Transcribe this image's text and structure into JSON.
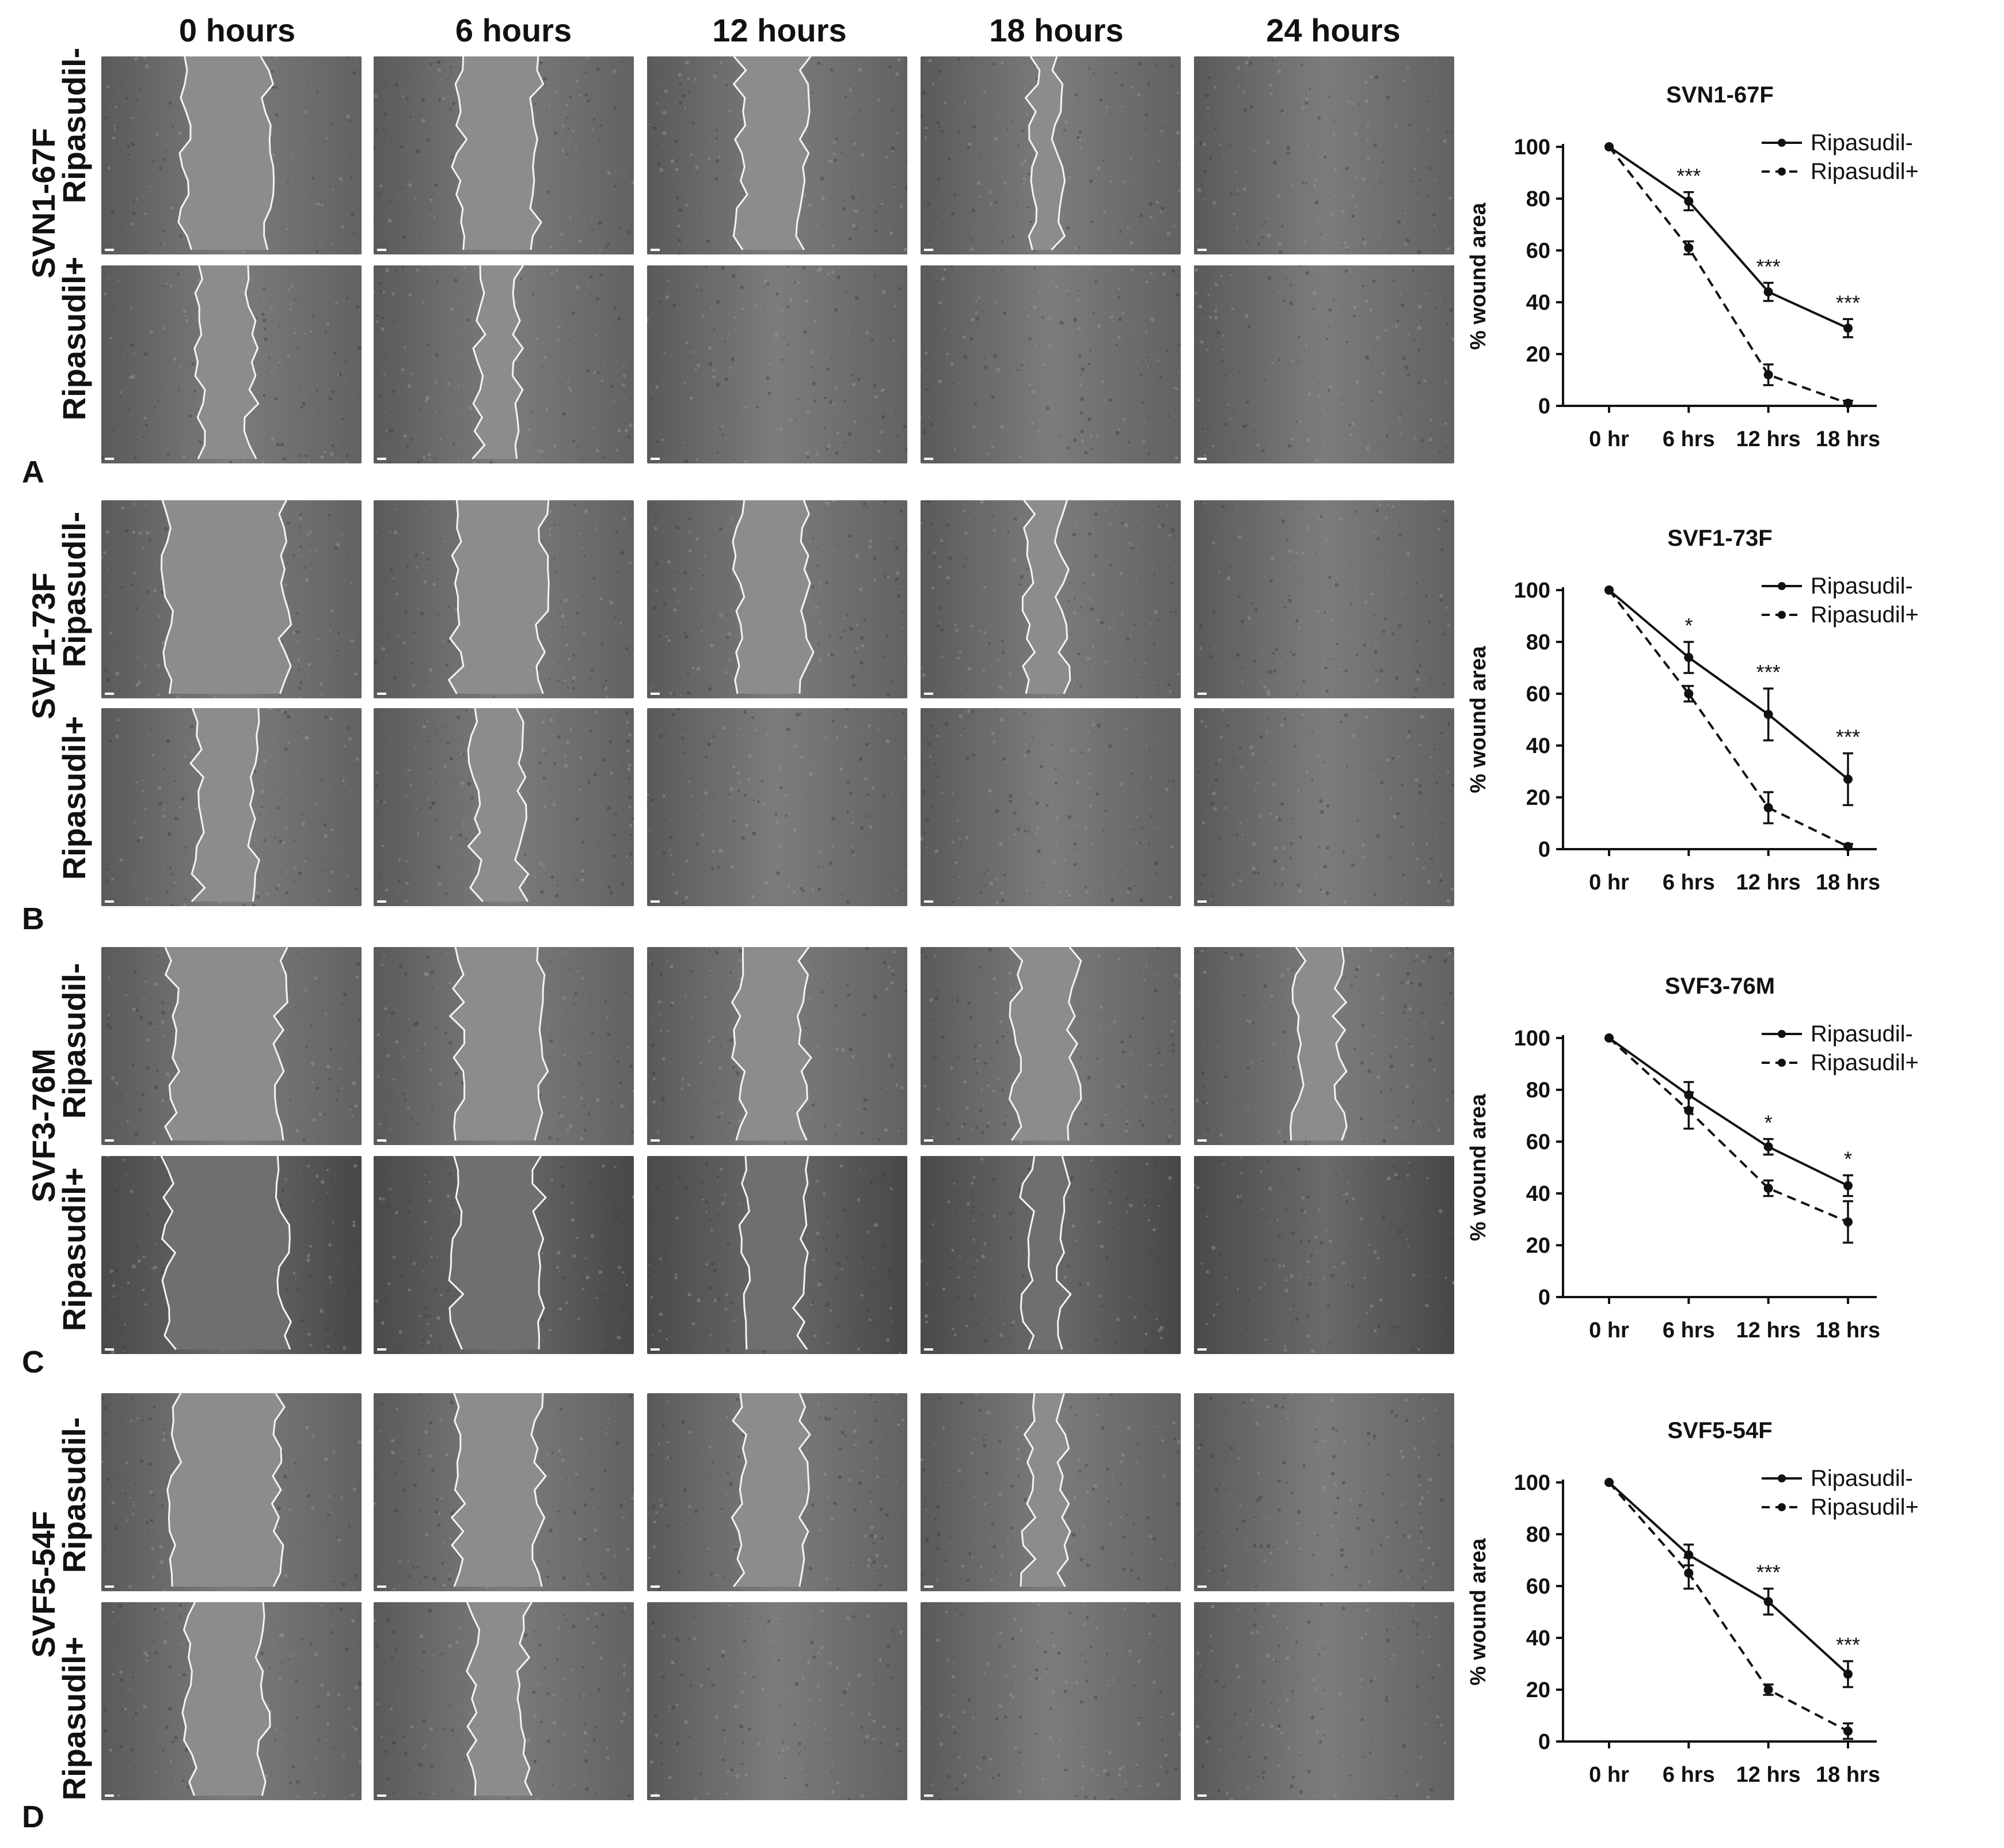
{
  "columns": [
    "0 hours",
    "6 hours",
    "12 hours",
    "18 hours",
    "24 hours"
  ],
  "treatments": [
    "Ripasudil-",
    "Ripasudil+"
  ],
  "panels": [
    {
      "letter": "A",
      "cell_line": "SVN1-67F"
    },
    {
      "letter": "B",
      "cell_line": "SVF1-73F"
    },
    {
      "letter": "C",
      "cell_line": "SVF3-76M"
    },
    {
      "letter": "D",
      "cell_line": "SVF5-54F"
    }
  ],
  "chart_data": [
    {
      "type": "line",
      "title": "SVN1-67F",
      "xlabel": "",
      "ylabel": "% wound area",
      "categories": [
        "0 hr",
        "6 hrs",
        "12 hrs",
        "18 hrs"
      ],
      "ylim": [
        0,
        100
      ],
      "yticks": [
        0,
        20,
        40,
        60,
        80,
        100
      ],
      "series": [
        {
          "name": "Ripasudil-",
          "style": "solid",
          "values": [
            100,
            79,
            44,
            30
          ],
          "errors": [
            0,
            3.5,
            3.5,
            3.5
          ]
        },
        {
          "name": "Ripasudil+",
          "style": "dashed",
          "values": [
            100,
            61,
            12,
            1
          ],
          "errors": [
            0,
            2.5,
            4,
            1
          ]
        }
      ],
      "annotations": [
        "",
        "***",
        "***",
        "***"
      ]
    },
    {
      "type": "line",
      "title": "SVF1-73F",
      "xlabel": "",
      "ylabel": "% wound area",
      "categories": [
        "0 hr",
        "6 hrs",
        "12 hrs",
        "18 hrs"
      ],
      "ylim": [
        0,
        100
      ],
      "yticks": [
        0,
        20,
        40,
        60,
        80,
        100
      ],
      "series": [
        {
          "name": "Ripasudil-",
          "style": "solid",
          "values": [
            100,
            74,
            52,
            27
          ],
          "errors": [
            0,
            6,
            10,
            10
          ]
        },
        {
          "name": "Ripasudil+",
          "style": "dashed",
          "values": [
            100,
            60,
            16,
            1
          ],
          "errors": [
            0,
            3,
            6,
            1
          ]
        }
      ],
      "annotations": [
        "",
        "*",
        "***",
        "***"
      ]
    },
    {
      "type": "line",
      "title": "SVF3-76M",
      "xlabel": "",
      "ylabel": "% wound area",
      "categories": [
        "0 hr",
        "6 hrs",
        "12 hrs",
        "18 hrs"
      ],
      "ylim": [
        0,
        100
      ],
      "yticks": [
        0,
        20,
        40,
        60,
        80,
        100
      ],
      "series": [
        {
          "name": "Ripasudil-",
          "style": "solid",
          "values": [
            100,
            78,
            58,
            43
          ],
          "errors": [
            0,
            5,
            3,
            4
          ]
        },
        {
          "name": "Ripasudil+",
          "style": "dashed",
          "values": [
            100,
            72,
            42,
            29
          ],
          "errors": [
            0,
            7,
            3,
            8
          ]
        }
      ],
      "annotations": [
        "",
        "",
        "*",
        "*"
      ]
    },
    {
      "type": "line",
      "title": "SVF5-54F",
      "xlabel": "",
      "ylabel": "% wound area",
      "categories": [
        "0 hr",
        "6 hrs",
        "12 hrs",
        "18 hrs"
      ],
      "ylim": [
        0,
        100
      ],
      "yticks": [
        0,
        20,
        40,
        60,
        80,
        100
      ],
      "series": [
        {
          "name": "Ripasudil-",
          "style": "solid",
          "values": [
            100,
            72,
            54,
            26
          ],
          "errors": [
            0,
            4,
            5,
            5
          ]
        },
        {
          "name": "Ripasudil+",
          "style": "dashed",
          "values": [
            100,
            65,
            20,
            4
          ],
          "errors": [
            0,
            6,
            2,
            3
          ]
        }
      ],
      "annotations": [
        "",
        "",
        "***",
        "***"
      ]
    }
  ]
}
